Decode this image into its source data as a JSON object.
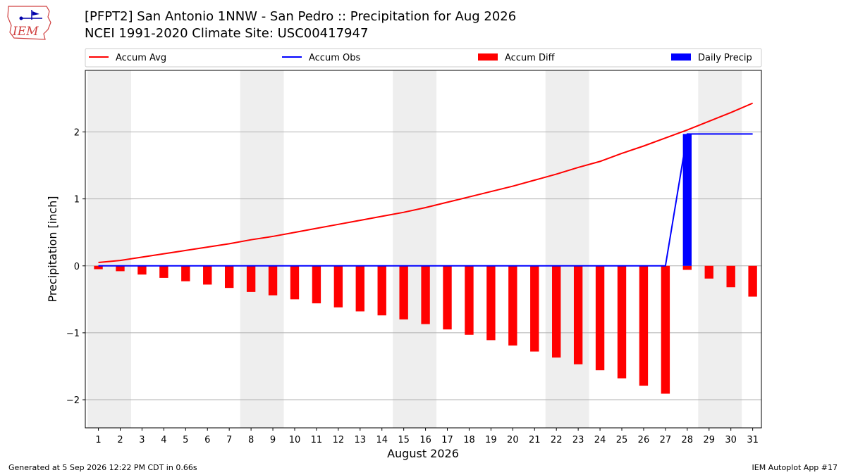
{
  "header": {
    "logo_text": "IEM",
    "title_line1": "[PFPT2] San Antonio 1NNW - San Pedro :: Precipitation for Aug 2026",
    "title_line2": "NCEI 1991-2020 Climate Site: USC00417947"
  },
  "footer": {
    "generated": "Generated at 5 Sep 2026 12:22 PM CDT in 0.66s",
    "app": "IEM Autoplot App #17"
  },
  "colors": {
    "accum_avg": "#ff0000",
    "accum_obs": "#0000ff",
    "accum_diff": "#ff0000",
    "daily_precip": "#0000ff",
    "weekend_shade": "#eeeeee",
    "grid": "#b0b0b0"
  },
  "chart_data": {
    "type": "bar",
    "xlabel": "August 2026",
    "ylabel": "Precipitation [inch]",
    "ylim": [
      -2.42,
      2.92
    ],
    "yticks": [
      -2,
      -1,
      0,
      1,
      2
    ],
    "ytick_labels": [
      "−2",
      "−1",
      "0",
      "1",
      "2"
    ],
    "grid": "horizontal",
    "legend_position": "top",
    "days": [
      1,
      2,
      3,
      4,
      5,
      6,
      7,
      8,
      9,
      10,
      11,
      12,
      13,
      14,
      15,
      16,
      17,
      18,
      19,
      20,
      21,
      22,
      23,
      24,
      25,
      26,
      27,
      28,
      29,
      30,
      31
    ],
    "shaded_day_ranges": [
      [
        1,
        2
      ],
      [
        8,
        9
      ],
      [
        15,
        16
      ],
      [
        22,
        23
      ],
      [
        29,
        30
      ]
    ],
    "series": [
      {
        "name": "Accum Avg",
        "kind": "line",
        "color": "#ff0000",
        "values": [
          0.05,
          0.08,
          0.13,
          0.18,
          0.23,
          0.28,
          0.33,
          0.39,
          0.44,
          0.5,
          0.56,
          0.62,
          0.68,
          0.74,
          0.8,
          0.87,
          0.95,
          1.03,
          1.11,
          1.19,
          1.28,
          1.37,
          1.47,
          1.56,
          1.68,
          1.79,
          1.91,
          2.03,
          2.16,
          2.29,
          2.43
        ]
      },
      {
        "name": "Accum Obs",
        "kind": "line",
        "color": "#0000ff",
        "values": [
          0,
          0,
          0,
          0,
          0,
          0,
          0,
          0,
          0,
          0,
          0,
          0,
          0,
          0,
          0,
          0,
          0,
          0,
          0,
          0,
          0,
          0,
          0,
          0,
          0,
          0,
          0,
          1.97,
          1.97,
          1.97,
          1.97
        ]
      },
      {
        "name": "Accum Diff",
        "kind": "bar",
        "color": "#ff0000",
        "values": [
          -0.05,
          -0.08,
          -0.13,
          -0.18,
          -0.23,
          -0.28,
          -0.33,
          -0.39,
          -0.44,
          -0.5,
          -0.56,
          -0.62,
          -0.68,
          -0.74,
          -0.8,
          -0.87,
          -0.95,
          -1.03,
          -1.11,
          -1.19,
          -1.28,
          -1.37,
          -1.47,
          -1.56,
          -1.68,
          -1.79,
          -1.91,
          -0.06,
          -0.19,
          -0.32,
          -0.46
        ]
      },
      {
        "name": "Daily Precip",
        "kind": "bar",
        "color": "#0000ff",
        "values": [
          0,
          0,
          0,
          0,
          0,
          0,
          0,
          0,
          0,
          0,
          0,
          0,
          0,
          0,
          0,
          0,
          0,
          0,
          0,
          0,
          0,
          0,
          0,
          0,
          0,
          0,
          0,
          1.97,
          0,
          0,
          0
        ]
      }
    ]
  }
}
